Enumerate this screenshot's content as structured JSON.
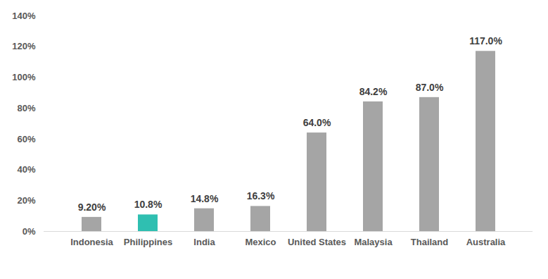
{
  "chart_data": {
    "type": "bar",
    "categories": [
      "Indonesia",
      "Philippines",
      "India",
      "Mexico",
      "United States",
      "Malaysia",
      "Thailand",
      "Australia"
    ],
    "values": [
      9.2,
      10.8,
      14.8,
      16.3,
      64.0,
      84.2,
      87.0,
      117.0
    ],
    "value_labels": [
      "9.20%",
      "10.8%",
      "14.8%",
      "16.3%",
      "64.0%",
      "84.2%",
      "87.0%",
      "117.0%"
    ],
    "colors": [
      "#a5a5a5",
      "#2fbfb1",
      "#a5a5a5",
      "#a5a5a5",
      "#a5a5a5",
      "#a5a5a5",
      "#a5a5a5",
      "#a5a5a5"
    ],
    "ylim": [
      0,
      140
    ],
    "yticks": [
      {
        "value": 0,
        "label": "0%"
      },
      {
        "value": 20,
        "label": "20%"
      },
      {
        "value": 40,
        "label": "40%"
      },
      {
        "value": 60,
        "label": "60%"
      },
      {
        "value": 80,
        "label": "80%"
      },
      {
        "value": 100,
        "label": "100%"
      },
      {
        "value": 120,
        "label": "120%"
      },
      {
        "value": 140,
        "label": "140%"
      }
    ],
    "grid": false,
    "data_labels": true
  }
}
